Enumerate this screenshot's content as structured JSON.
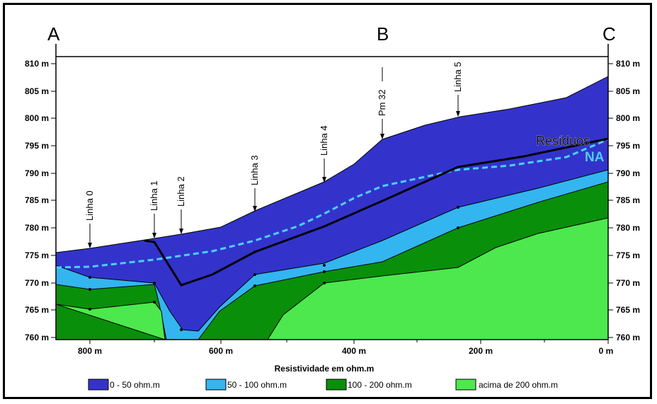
{
  "section_letters": [
    "A",
    "B",
    "C"
  ],
  "y_ticks": [
    "810 m",
    "805 m",
    "800 m",
    "795 m",
    "790 m",
    "785 m",
    "780 m",
    "775 m",
    "770 m",
    "765 m",
    "760 m"
  ],
  "x_ticks": [
    "800 m",
    "600 m",
    "400 m",
    "200 m",
    "0 m"
  ],
  "x_axis_title": "Resistividade em ohm.m",
  "survey_lines": [
    "Linha 0",
    "Linha 1",
    "Linha 2",
    "Linha 3",
    "Linha 4",
    "Pm 32",
    "Linha 5"
  ],
  "labels": {
    "residuos": "Resíduos",
    "na": "NA"
  },
  "legend": [
    {
      "label": "0 - 50 ohm.m",
      "color": "#3333cc"
    },
    {
      "label": "50 - 100 ohm.m",
      "color": "#33b5f0"
    },
    {
      "label": "100 - 200 ohm.m",
      "color": "#0a8f0a"
    },
    {
      "label": "acima de 200 ohm.m",
      "color": "#4de84d"
    }
  ],
  "colors": {
    "na_line": "#4dcfff",
    "residuos_line": "#000000"
  }
}
